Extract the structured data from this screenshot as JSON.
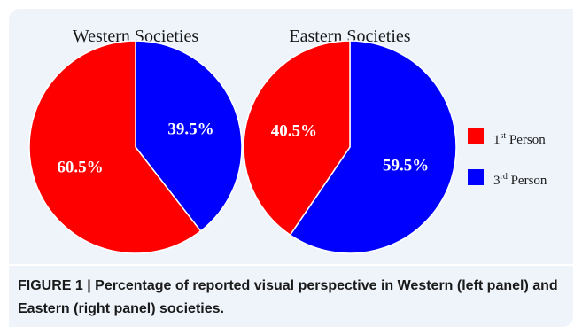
{
  "chart_data": [
    {
      "type": "pie",
      "title": "Western Societies",
      "slices": [
        {
          "name": "1st Person",
          "value": 60.5,
          "label": "60.5%",
          "color": "#ff0000"
        },
        {
          "name": "3rd Person",
          "value": 39.5,
          "label": "39.5%",
          "color": "#0000ff"
        }
      ]
    },
    {
      "type": "pie",
      "title": "Eastern Societies",
      "slices": [
        {
          "name": "1st Person",
          "value": 40.5,
          "label": "40.5%",
          "color": "#ff0000"
        },
        {
          "name": "3rd Person",
          "value": 59.5,
          "label": "59.5%",
          "color": "#0000ff"
        }
      ]
    }
  ],
  "legend": {
    "placement": "right",
    "items": [
      {
        "ordinal": "1",
        "sup": "st",
        "rest": " Person",
        "color": "#ff0000"
      },
      {
        "ordinal": "3",
        "sup": "rd",
        "rest": " Person",
        "color": "#0000ff"
      }
    ]
  },
  "caption": "FIGURE 1 | Percentage of reported visual perspective in Western (left panel) and Eastern (right panel) societies."
}
